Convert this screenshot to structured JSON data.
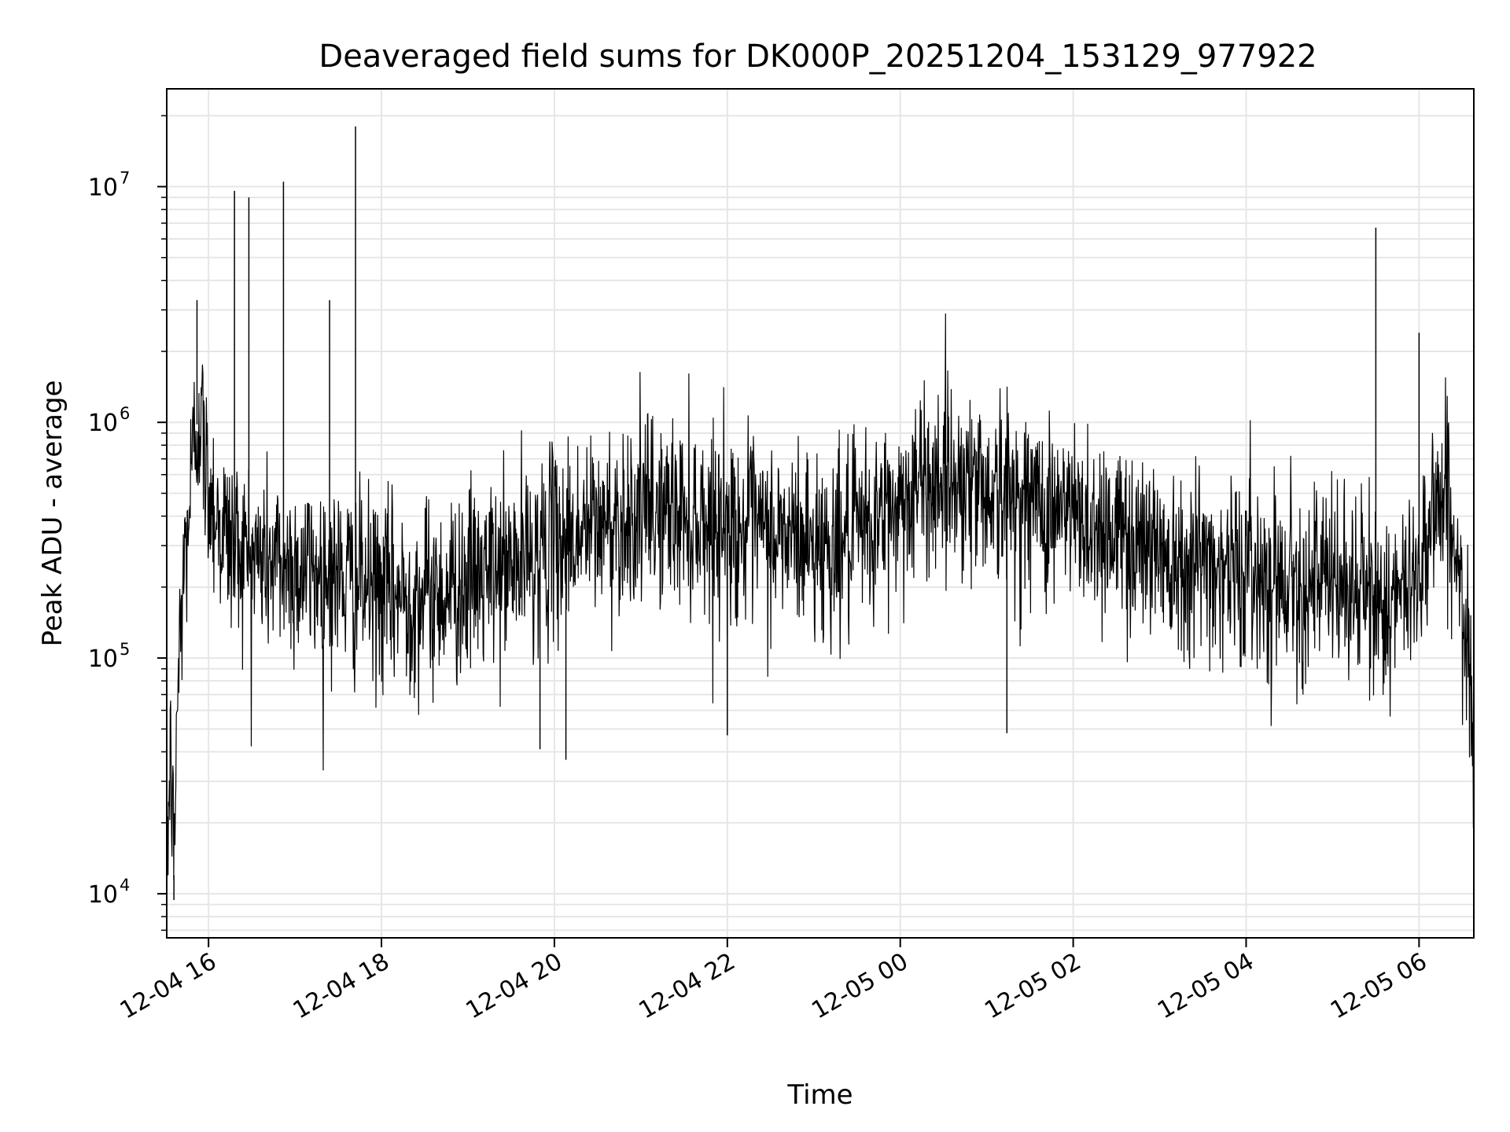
{
  "chart_data": {
    "type": "line",
    "title": "Deaveraged field sums for DK000P_20251204_153129_977922",
    "xlabel": "Time",
    "ylabel": "Peak ADU - average",
    "yscale": "log",
    "xlim": [
      "2025-12-04 15:31",
      "2025-12-05 06:38"
    ],
    "ylim": [
      6500,
      26000000
    ],
    "grid": true,
    "line_color": "#000000",
    "grid_color": "#e6e6e6",
    "xticks": [
      {
        "value": "2025-12-04 16:00",
        "label": "12-04 16"
      },
      {
        "value": "2025-12-04 18:00",
        "label": "12-04 18"
      },
      {
        "value": "2025-12-04 20:00",
        "label": "12-04 20"
      },
      {
        "value": "2025-12-04 22:00",
        "label": "12-04 22"
      },
      {
        "value": "2025-12-05 00:00",
        "label": "12-05 00"
      },
      {
        "value": "2025-12-05 02:00",
        "label": "12-05 02"
      },
      {
        "value": "2025-12-05 04:00",
        "label": "12-05 04"
      },
      {
        "value": "2025-12-05 06:00",
        "label": "12-05 06"
      }
    ],
    "yticks": [
      {
        "value": 10000,
        "base": "10",
        "exp": "4"
      },
      {
        "value": 100000,
        "base": "10",
        "exp": "5"
      },
      {
        "value": 1000000,
        "base": "10",
        "exp": "6"
      },
      {
        "value": 10000000,
        "base": "10",
        "exp": "7"
      }
    ],
    "series": [
      {
        "time": [
          "2025-12-04 15:31",
          "2025-12-04 15:34",
          "2025-12-04 15:36",
          "2025-12-04 15:38",
          "2025-12-04 15:42",
          "2025-12-04 15:46",
          "2025-12-04 15:50",
          "2025-12-04 15:54",
          "2025-12-04 15:58",
          "2025-12-04 16:02",
          "2025-12-04 16:06",
          "2025-12-04 16:10",
          "2025-12-04 16:14",
          "2025-12-04 16:18",
          "2025-12-04 16:22",
          "2025-12-04 16:26",
          "2025-12-04 16:30",
          "2025-12-04 16:40",
          "2025-12-04 16:50",
          "2025-12-04 17:00",
          "2025-12-04 17:20",
          "2025-12-04 17:40",
          "2025-12-04 17:48",
          "2025-12-04 18:00",
          "2025-12-04 18:20",
          "2025-12-04 18:40",
          "2025-12-04 19:00",
          "2025-12-04 19:20",
          "2025-12-04 19:40",
          "2025-12-04 19:55",
          "2025-12-04 20:10",
          "2025-12-04 20:30",
          "2025-12-04 20:50",
          "2025-12-04 21:10",
          "2025-12-04 21:30",
          "2025-12-04 21:50",
          "2025-12-04 22:10",
          "2025-12-04 22:30",
          "2025-12-04 22:50",
          "2025-12-04 23:10",
          "2025-12-04 23:30",
          "2025-12-04 23:50",
          "2025-12-05 00:10",
          "2025-12-05 00:30",
          "2025-12-05 00:50",
          "2025-12-05 01:10",
          "2025-12-05 01:30",
          "2025-12-05 01:50",
          "2025-12-05 02:10",
          "2025-12-05 02:30",
          "2025-12-05 02:50",
          "2025-12-05 03:10",
          "2025-12-05 03:30",
          "2025-12-05 03:50",
          "2025-12-05 04:10",
          "2025-12-05 04:30",
          "2025-12-05 04:50",
          "2025-12-05 05:10",
          "2025-12-05 05:30",
          "2025-12-05 05:45",
          "2025-12-05 06:00",
          "2025-12-05 06:10",
          "2025-12-05 06:20",
          "2025-12-05 06:30",
          "2025-12-05 06:38"
        ],
        "values": [
          15000,
          40000,
          12000,
          60000,
          200000,
          400000,
          800000,
          1200000,
          600000,
          500000,
          400000,
          350000,
          320000,
          300000,
          300000,
          280000,
          270000,
          260000,
          250000,
          240000,
          230000,
          210000,
          200000,
          190000,
          180000,
          190000,
          210000,
          230000,
          260000,
          300000,
          330000,
          360000,
          400000,
          420000,
          410000,
          380000,
          350000,
          330000,
          320000,
          300000,
          320000,
          400000,
          520000,
          600000,
          560000,
          500000,
          460000,
          420000,
          380000,
          340000,
          310000,
          280000,
          260000,
          240000,
          230000,
          220000,
          210000,
          200000,
          180000,
          160000,
          250000,
          450000,
          500000,
          150000,
          50000
        ]
      }
    ],
    "peaks": [
      {
        "time": "2025-12-04 15:52",
        "value": 3300000
      },
      {
        "time": "2025-12-04 16:18",
        "value": 9600000
      },
      {
        "time": "2025-12-04 16:28",
        "value": 9000000
      },
      {
        "time": "2025-12-04 16:52",
        "value": 10500000
      },
      {
        "time": "2025-12-04 17:24",
        "value": 3300000
      },
      {
        "time": "2025-12-04 17:42",
        "value": 18000000
      },
      {
        "time": "2025-12-05 05:30",
        "value": 6700000
      },
      {
        "time": "2025-12-05 06:00",
        "value": 2400000
      }
    ],
    "dips": [
      {
        "time": "2025-12-04 15:36",
        "value": 9400
      },
      {
        "time": "2025-12-04 19:50",
        "value": 41000
      },
      {
        "time": "2025-12-04 20:08",
        "value": 37000
      },
      {
        "time": "2025-12-04 22:00",
        "value": 47000
      },
      {
        "time": "2025-12-05 01:14",
        "value": 48000
      }
    ]
  }
}
